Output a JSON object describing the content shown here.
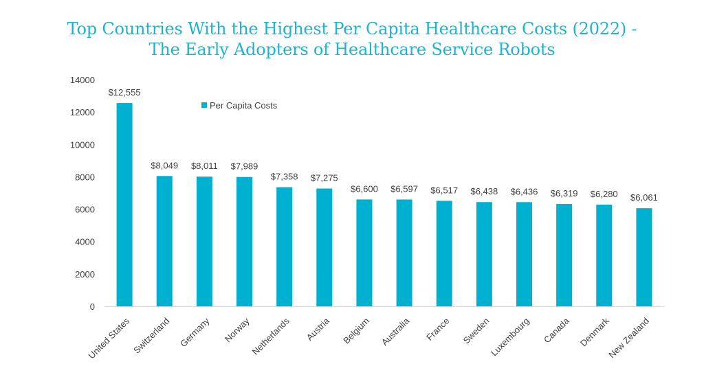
{
  "chart_data": {
    "type": "bar",
    "title_lines": [
      "Top Countries With the Highest Per Capita Healthcare Costs (2022) -",
      "The Early Adopters of Healthcare Service Robots"
    ],
    "categories": [
      "United States",
      "Switzerland",
      "Germany",
      "Norway",
      "Netherlands",
      "Austria",
      "Belgium",
      "Australia",
      "France",
      "Sweden",
      "Luxembourg",
      "Canada",
      "Denmark",
      "New Zealand"
    ],
    "series": [
      {
        "name": "Per Capita Costs",
        "values": [
          12555,
          8049,
          8011,
          7989,
          7358,
          7275,
          6600,
          6597,
          6517,
          6438,
          6436,
          6319,
          6280,
          6061
        ],
        "labels": [
          "$12,555",
          "$8,049",
          "$8,011",
          "$7,989",
          "$7,358",
          "$7,275",
          "$6,600",
          "$6,597",
          "$6,517",
          "$6,438",
          "$6,436",
          "$6,319",
          "$6,280",
          "$6,061"
        ]
      }
    ],
    "ylim": [
      0,
      14000
    ],
    "yticks": [
      "0",
      "2000",
      "4000",
      "6000",
      "8000",
      "10000",
      "12000",
      "14000"
    ],
    "xlabel": "",
    "ylabel": "",
    "grid": false,
    "legend_position": "top-left",
    "bar_color": "#00b0d0"
  }
}
